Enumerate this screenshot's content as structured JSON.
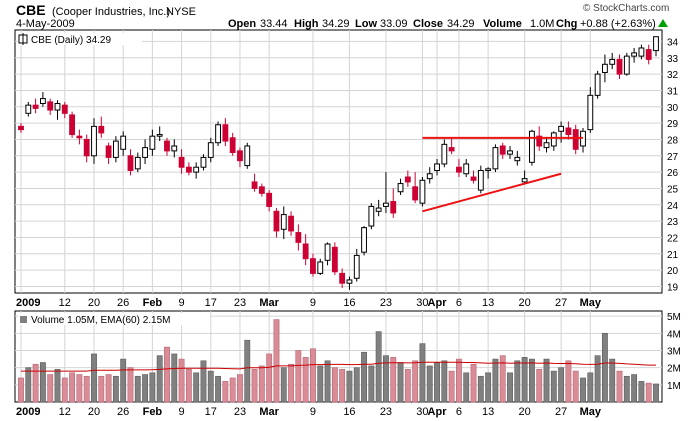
{
  "header": {
    "symbol": "CBE",
    "company": "(Cooper Industries, Inc.)",
    "exchange": "NYSE",
    "date": "4-May-2009",
    "open_label": "Open",
    "open": "33.44",
    "high_label": "High",
    "high": "34.29",
    "low_label": "Low",
    "low": "33.09",
    "close_label": "Close",
    "close": "34.29",
    "volume_label": "Volume",
    "volume": "1.0M",
    "chg_label": "Chg",
    "chg": "+0.88 (+2.63%)",
    "chg_icon": "up-triangle-icon",
    "brand": "© StockCharts.com"
  },
  "price_legend": "CBE (Daily) 34.29",
  "volume_legend": "Volume 1.05M, EMA(60) 2.15M",
  "colors": {
    "up_candle": "#000000",
    "down_candle": "#cc0033",
    "volume_up": "#808080",
    "volume_down": "#d98c96",
    "ema_line": "#cc0000",
    "trendline": "#ee1111",
    "grid": "#d4d4d4"
  },
  "chart_data": [
    {
      "type": "candlestick",
      "title": "CBE (Daily) 34.29",
      "ylim": [
        18.6,
        34.7
      ],
      "yticks": [
        19,
        20,
        21,
        22,
        23,
        24,
        25,
        26,
        27,
        28,
        29,
        30,
        31,
        32,
        33,
        34
      ],
      "xtick_labels": [
        "2009",
        "12",
        "20",
        "26",
        "Feb",
        "9",
        "17",
        "23",
        "Mar",
        "9",
        "16",
        "23",
        "30",
        "Apr",
        "6",
        "13",
        "20",
        "27",
        "May"
      ],
      "xtick_bold": [
        "2009",
        "Feb",
        "Mar",
        "Apr",
        "May"
      ],
      "xtick_index": [
        0,
        6,
        10,
        14,
        18,
        22,
        26,
        30,
        34,
        40,
        45,
        50,
        55,
        57,
        60,
        64,
        69,
        74,
        78
      ],
      "grid": true,
      "ohlc": [
        [
          28.8,
          29.0,
          28.4,
          28.6
        ],
        [
          29.6,
          30.3,
          29.4,
          30.1
        ],
        [
          30.1,
          30.5,
          29.6,
          29.9
        ],
        [
          30.2,
          30.9,
          30.0,
          30.5
        ],
        [
          30.3,
          30.5,
          29.5,
          29.8
        ],
        [
          29.8,
          30.4,
          29.2,
          30.2
        ],
        [
          30.1,
          30.3,
          29.3,
          29.6
        ],
        [
          29.5,
          29.7,
          28.1,
          28.3
        ],
        [
          28.2,
          28.6,
          27.7,
          28.1
        ],
        [
          28.0,
          28.3,
          26.6,
          27.0
        ],
        [
          27.0,
          29.3,
          26.5,
          28.8
        ],
        [
          28.8,
          29.4,
          28.1,
          28.4
        ],
        [
          27.6,
          27.8,
          26.5,
          26.9
        ],
        [
          26.9,
          28.2,
          26.6,
          27.9
        ],
        [
          27.4,
          28.5,
          27.0,
          28.2
        ],
        [
          27.0,
          27.4,
          25.8,
          26.1
        ],
        [
          26.2,
          27.2,
          26.0,
          26.9
        ],
        [
          26.9,
          28.0,
          26.5,
          27.5
        ],
        [
          27.4,
          28.6,
          27.0,
          28.2
        ],
        [
          28.2,
          28.8,
          27.9,
          28.3
        ],
        [
          27.9,
          28.1,
          27.0,
          27.3
        ],
        [
          27.3,
          28.0,
          26.9,
          27.6
        ],
        [
          26.9,
          27.4,
          25.9,
          26.3
        ],
        [
          26.3,
          26.6,
          25.8,
          26.0
        ],
        [
          26.0,
          26.6,
          25.6,
          26.3
        ],
        [
          26.3,
          27.1,
          26.1,
          26.9
        ],
        [
          26.9,
          28.1,
          26.6,
          27.8
        ],
        [
          27.8,
          29.1,
          27.6,
          28.9
        ],
        [
          28.9,
          29.3,
          27.6,
          27.9
        ],
        [
          28.1,
          28.4,
          27.0,
          27.2
        ],
        [
          27.3,
          27.5,
          26.3,
          26.7
        ],
        [
          26.4,
          27.8,
          26.2,
          27.6
        ],
        [
          25.4,
          25.9,
          24.8,
          25.0
        ],
        [
          25.1,
          25.3,
          24.5,
          24.7
        ],
        [
          24.7,
          24.9,
          23.6,
          23.9
        ],
        [
          23.6,
          23.8,
          22.0,
          22.4
        ],
        [
          22.5,
          23.9,
          21.9,
          23.4
        ],
        [
          23.3,
          23.6,
          22.1,
          22.4
        ],
        [
          22.3,
          22.8,
          21.2,
          21.7
        ],
        [
          21.6,
          22.2,
          20.3,
          20.7
        ],
        [
          20.7,
          21.0,
          19.6,
          19.8
        ],
        [
          19.8,
          20.7,
          19.7,
          20.5
        ],
        [
          20.6,
          21.7,
          20.3,
          21.6
        ],
        [
          21.4,
          21.7,
          19.7,
          19.9
        ],
        [
          19.8,
          20.1,
          18.9,
          19.2
        ],
        [
          19.2,
          19.6,
          18.8,
          19.4
        ],
        [
          19.5,
          21.3,
          19.3,
          20.9
        ],
        [
          21.1,
          22.7,
          20.9,
          22.6
        ],
        [
          22.7,
          24.1,
          22.5,
          23.9
        ],
        [
          23.6,
          24.3,
          23.3,
          23.8
        ],
        [
          23.9,
          26.0,
          23.5,
          24.1
        ],
        [
          24.2,
          25.0,
          23.2,
          23.5
        ],
        [
          24.8,
          25.6,
          24.6,
          25.3
        ],
        [
          25.7,
          26.1,
          25.1,
          25.4
        ],
        [
          25.1,
          26.0,
          24.1,
          24.3
        ],
        [
          24.1,
          25.7,
          23.9,
          25.5
        ],
        [
          25.6,
          26.3,
          25.3,
          25.9
        ],
        [
          26.1,
          26.8,
          25.8,
          26.5
        ],
        [
          26.5,
          28.0,
          26.3,
          27.7
        ],
        [
          27.5,
          28.1,
          27.1,
          27.3
        ],
        [
          26.3,
          26.8,
          25.7,
          26.0
        ],
        [
          25.9,
          26.8,
          25.7,
          26.5
        ],
        [
          25.7,
          26.1,
          25.3,
          25.5
        ],
        [
          24.9,
          26.4,
          24.7,
          26.1
        ],
        [
          26.1,
          26.3,
          25.6,
          26.2
        ],
        [
          26.2,
          27.7,
          26.0,
          27.5
        ],
        [
          27.6,
          27.8,
          26.8,
          27.1
        ],
        [
          27.1,
          27.6,
          26.8,
          27.3
        ],
        [
          26.7,
          27.3,
          26.4,
          26.9
        ],
        [
          25.4,
          26.1,
          25.3,
          25.6
        ],
        [
          26.6,
          28.6,
          26.4,
          28.5
        ],
        [
          28.2,
          28.8,
          27.3,
          27.6
        ],
        [
          27.5,
          28.1,
          27.2,
          27.8
        ],
        [
          27.6,
          28.5,
          27.3,
          28.4
        ],
        [
          28.5,
          29.1,
          27.8,
          28.8
        ],
        [
          28.7,
          29.1,
          28.0,
          28.3
        ],
        [
          28.6,
          28.9,
          27.1,
          27.4
        ],
        [
          27.6,
          28.7,
          27.2,
          28.5
        ],
        [
          28.6,
          31.2,
          28.4,
          30.7
        ],
        [
          30.7,
          32.2,
          30.5,
          32.0
        ],
        [
          32.1,
          33.2,
          31.5,
          32.6
        ],
        [
          32.6,
          33.3,
          32.3,
          32.9
        ],
        [
          32.9,
          33.2,
          31.7,
          32.0
        ],
        [
          32.0,
          33.3,
          31.9,
          33.1
        ],
        [
          33.1,
          33.6,
          32.7,
          33.3
        ],
        [
          33.1,
          33.8,
          32.9,
          33.6
        ],
        [
          33.5,
          33.8,
          32.6,
          32.9
        ],
        [
          33.44,
          34.29,
          33.09,
          34.29
        ]
      ],
      "volume_m": [
        1.4,
        2.0,
        2.2,
        2.3,
        1.6,
        1.9,
        1.4,
        1.7,
        1.6,
        1.5,
        2.8,
        1.5,
        1.6,
        1.5,
        2.5,
        2.0,
        1.5,
        1.6,
        1.7,
        2.7,
        3.2,
        2.8,
        2.5,
        1.9,
        1.7,
        2.4,
        1.8,
        1.5,
        1.2,
        1.4,
        1.6,
        3.6,
        1.9,
        2.1,
        2.8,
        4.8,
        2.0,
        2.2,
        3.0,
        2.6,
        3.1,
        2.1,
        2.4,
        2.0,
        1.9,
        1.8,
        2.0,
        2.9,
        2.1,
        4.1,
        2.7,
        2.6,
        2.3,
        1.9,
        2.4,
        3.4,
        2.1,
        2.3,
        2.4,
        1.8,
        2.5,
        1.7,
        2.2,
        1.5,
        1.7,
        2.5,
        2.7,
        1.7,
        2.4,
        2.6,
        2.5,
        1.9,
        2.5,
        1.8,
        2.0,
        2.4,
        1.8,
        1.4,
        1.7,
        2.7,
        4.0,
        2.5,
        1.8,
        1.5,
        1.6,
        1.2,
        1.1,
        1.05
      ],
      "ema60_m": [
        1.8,
        1.8,
        1.8,
        1.8,
        1.8,
        1.8,
        1.8,
        1.8,
        1.8,
        1.8,
        1.85,
        1.85,
        1.85,
        1.85,
        1.87,
        1.87,
        1.87,
        1.87,
        1.88,
        1.9,
        1.93,
        1.95,
        1.96,
        1.96,
        1.96,
        1.97,
        1.97,
        1.96,
        1.95,
        1.94,
        1.93,
        1.99,
        1.99,
        1.99,
        2.02,
        2.1,
        2.1,
        2.1,
        2.13,
        2.15,
        2.18,
        2.18,
        2.19,
        2.19,
        2.19,
        2.18,
        2.18,
        2.2,
        2.2,
        2.26,
        2.28,
        2.29,
        2.29,
        2.28,
        2.29,
        2.32,
        2.32,
        2.32,
        2.32,
        2.31,
        2.32,
        2.3,
        2.3,
        2.28,
        2.26,
        2.27,
        2.28,
        2.26,
        2.27,
        2.27,
        2.28,
        2.26,
        2.27,
        2.25,
        2.24,
        2.24,
        2.23,
        2.2,
        2.19,
        2.2,
        2.27,
        2.27,
        2.25,
        2.22,
        2.2,
        2.17,
        2.15,
        2.15
      ],
      "vol_ylim": [
        0,
        5.3
      ],
      "vol_ticks": [
        1,
        2,
        3,
        4,
        5
      ],
      "vol_tick_labels": [
        "1M",
        "2M",
        "3M",
        "4M",
        "5M"
      ],
      "trendlines": [
        {
          "from": [
            55,
            28.1
          ],
          "to": [
            77,
            28.1
          ]
        },
        {
          "from": [
            55,
            23.6
          ],
          "to": [
            74,
            25.9
          ]
        }
      ]
    }
  ]
}
